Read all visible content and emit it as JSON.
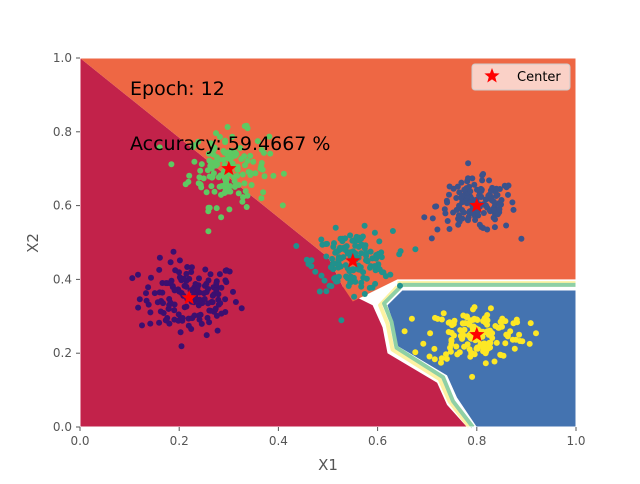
{
  "chart_data": {
    "type": "scatter",
    "title": "",
    "xlabel": "X1",
    "ylabel": "X2",
    "xlim": [
      0,
      1
    ],
    "ylim": [
      0,
      1
    ],
    "xticks": [
      "0.0",
      "0.2",
      "0.4",
      "0.6",
      "0.8",
      "1.0"
    ],
    "yticks": [
      "0.0",
      "0.2",
      "0.4",
      "0.6",
      "0.8",
      "1.0"
    ],
    "annotations": [
      "Epoch: 12",
      "Accuracy: 59.4667 %"
    ],
    "legend": {
      "position": "top-right",
      "entries": [
        "Center"
      ]
    },
    "grid": false,
    "colors": {
      "region_crimson": "#c2224a",
      "region_orange": "#ee6744",
      "region_blue": "#4473b0",
      "band_yellow": "#fdf2a3",
      "band_green": "#8fd0a5",
      "center_marker": "#ff0000",
      "axis_text": "#555555"
    },
    "decision_regions": [
      {
        "name": "crimson",
        "color": "#c2224a",
        "polygon": [
          [
            0.0,
            1.0
          ],
          [
            0.0,
            0.0
          ],
          [
            0.78,
            0.0
          ],
          [
            0.74,
            0.06
          ],
          [
            0.72,
            0.12
          ],
          [
            0.62,
            0.2
          ],
          [
            0.61,
            0.27
          ],
          [
            0.59,
            0.33
          ],
          [
            0.56,
            0.35
          ],
          [
            0.53,
            0.38
          ],
          [
            0.5,
            0.46
          ],
          [
            0.0,
            1.0
          ]
        ]
      },
      {
        "name": "orange",
        "color": "#ee6744",
        "polygon": [
          [
            0.0,
            1.0
          ],
          [
            1.0,
            1.0
          ],
          [
            1.0,
            0.4
          ],
          [
            0.64,
            0.4
          ],
          [
            0.55,
            0.34
          ],
          [
            0.53,
            0.38
          ],
          [
            0.5,
            0.46
          ],
          [
            0.0,
            1.0
          ]
        ]
      },
      {
        "name": "blue",
        "color": "#4473b0",
        "polygon": [
          [
            0.65,
            0.37
          ],
          [
            1.0,
            0.37
          ],
          [
            1.0,
            0.0
          ],
          [
            0.8,
            0.0
          ],
          [
            0.76,
            0.08
          ],
          [
            0.74,
            0.14
          ],
          [
            0.64,
            0.22
          ],
          [
            0.63,
            0.29
          ],
          [
            0.62,
            0.33
          ],
          [
            0.65,
            0.37
          ]
        ]
      }
    ],
    "boundary_bands": [
      {
        "color": "#fdf2a3",
        "points": [
          [
            0.64,
            0.39
          ],
          [
            1.0,
            0.39
          ]
        ]
      },
      {
        "color": "#8fd0a5",
        "points": [
          [
            0.65,
            0.385
          ],
          [
            1.0,
            0.385
          ]
        ]
      },
      {
        "color": "#fdf2a3",
        "points": [
          [
            0.785,
            0.0
          ],
          [
            0.745,
            0.07
          ],
          [
            0.725,
            0.13
          ],
          [
            0.63,
            0.21
          ],
          [
            0.62,
            0.28
          ],
          [
            0.605,
            0.33
          ],
          [
            0.64,
            0.38
          ]
        ]
      },
      {
        "color": "#8fd0a5",
        "points": [
          [
            0.792,
            0.0
          ],
          [
            0.752,
            0.07
          ],
          [
            0.732,
            0.135
          ],
          [
            0.638,
            0.215
          ],
          [
            0.628,
            0.285
          ],
          [
            0.613,
            0.335
          ],
          [
            0.645,
            0.378
          ]
        ]
      }
    ],
    "series": [
      {
        "color": "#3b0f70",
        "center": [
          0.22,
          0.35
        ],
        "spread": [
          0.05,
          0.05
        ],
        "count": 150
      },
      {
        "color": "#5ec962",
        "center": [
          0.3,
          0.7
        ],
        "spread": [
          0.04,
          0.05
        ],
        "count": 150
      },
      {
        "color": "#3b528b",
        "center": [
          0.8,
          0.6
        ],
        "spread": [
          0.04,
          0.035
        ],
        "count": 150
      },
      {
        "color": "#21918c",
        "center": [
          0.55,
          0.45
        ],
        "spread": [
          0.04,
          0.04
        ],
        "count": 150
      },
      {
        "color": "#fde725",
        "center": [
          0.8,
          0.25
        ],
        "spread": [
          0.05,
          0.04
        ],
        "count": 150
      }
    ],
    "centers": [
      [
        0.22,
        0.35
      ],
      [
        0.3,
        0.7
      ],
      [
        0.8,
        0.6
      ],
      [
        0.55,
        0.45
      ],
      [
        0.8,
        0.25
      ]
    ]
  }
}
